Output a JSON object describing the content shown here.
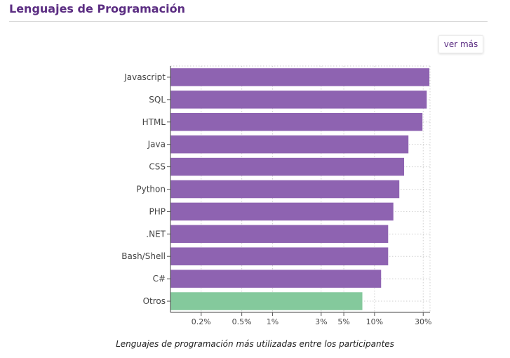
{
  "header": {
    "title": "Lenguajes de Programación"
  },
  "actions": {
    "more_label": "ver más"
  },
  "chart_data": {
    "type": "bar",
    "orientation": "horizontal",
    "x_scale": "log",
    "categories": [
      "Javascript",
      "SQL",
      "HTML",
      "Java",
      "CSS",
      "Python",
      "PHP",
      ".NET",
      "Bash/Shell",
      "C#",
      "Otros"
    ],
    "values": [
      34.5,
      32.5,
      29.5,
      21.5,
      19.5,
      17.5,
      15.3,
      13.6,
      13.6,
      11.6,
      7.6
    ],
    "highlight_category": "Otros",
    "xlim": [
      0.1,
      35
    ],
    "x_ticks": [
      {
        "value": 0.2,
        "label": "0.2%"
      },
      {
        "value": 0.5,
        "label": "0.5%"
      },
      {
        "value": 1,
        "label": "1%"
      },
      {
        "value": 3,
        "label": "3%"
      },
      {
        "value": 5,
        "label": "5%"
      },
      {
        "value": 10,
        "label": "10%"
      },
      {
        "value": 30,
        "label": "30%"
      }
    ],
    "grid": true,
    "colors": {
      "bar": "#8e63b1",
      "highlight": "#84c99c"
    },
    "caption": "Lenguajes de programación más utilizadas entre los participantes"
  }
}
